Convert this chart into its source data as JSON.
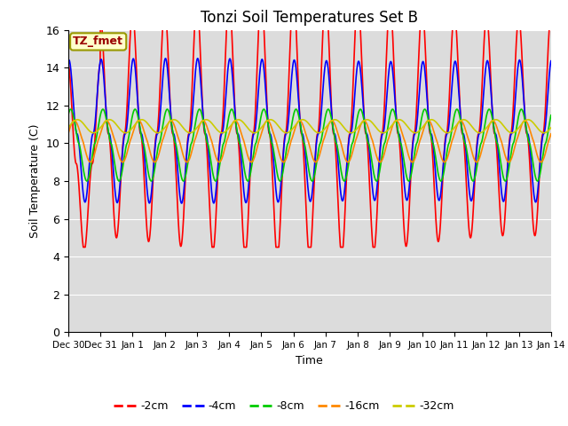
{
  "title": "Tonzi Soil Temperatures Set B",
  "ylabel": "Soil Temperature (C)",
  "xlabel": "Time",
  "ylim": [
    0,
    16
  ],
  "yticks": [
    0,
    2,
    4,
    6,
    8,
    10,
    12,
    14,
    16
  ],
  "bg_color": "#dcdcdc",
  "legend_label": "TZ_fmet",
  "legend_box_color": "#ffffcc",
  "legend_box_edge": "#999900",
  "legend_text_color": "#990000",
  "series": [
    {
      "label": "-2cm",
      "color": "#ff0000",
      "lw": 1.2
    },
    {
      "label": "-4cm",
      "color": "#0000ff",
      "lw": 1.2
    },
    {
      "label": "-8cm",
      "color": "#00cc00",
      "lw": 1.2
    },
    {
      "label": "-16cm",
      "color": "#ff8800",
      "lw": 1.2
    },
    {
      "label": "-32cm",
      "color": "#cccc00",
      "lw": 1.2
    }
  ],
  "x_tick_labels": [
    "Dec 30",
    "Dec 31",
    "Jan 1",
    "Jan 2",
    "Jan 3",
    "Jan 4",
    "Jan 5",
    "Jan 6",
    "Jan 7",
    "Jan 8",
    "Jan 9",
    "Jan 10",
    "Jan 11",
    "Jan 12",
    "Jan 13",
    "Jan 14"
  ],
  "x_tick_positions": [
    0,
    1,
    2,
    3,
    4,
    5,
    6,
    7,
    8,
    9,
    10,
    11,
    12,
    13,
    14,
    15
  ]
}
